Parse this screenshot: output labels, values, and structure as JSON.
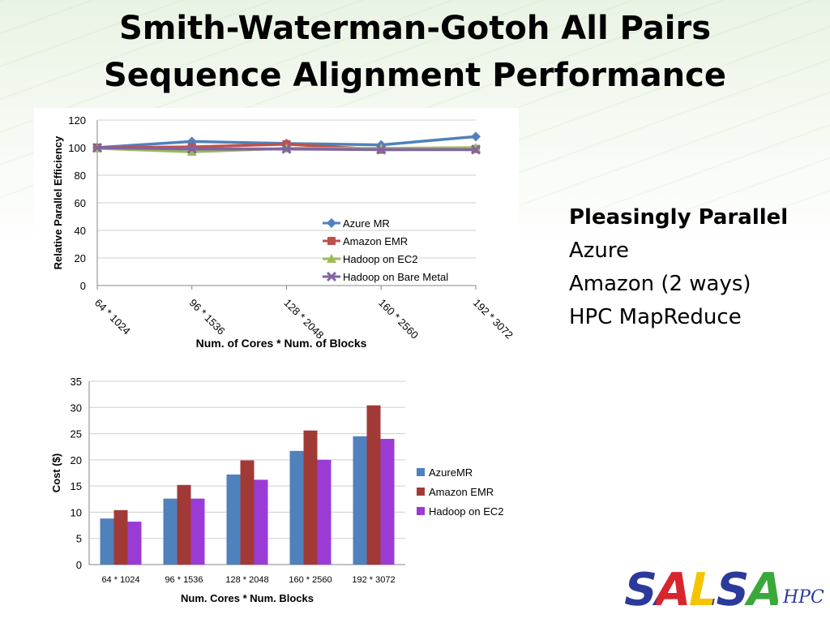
{
  "slide": {
    "title_line1": "Smith-Waterman-Gotoh All Pairs",
    "title_line2": "Sequence Alignment Performance",
    "bullets": {
      "heading": "Pleasingly Parallel",
      "items": [
        "Azure",
        "Amazon (2 ways)",
        "HPC MapReduce"
      ]
    },
    "logo": {
      "mark": "SALSA",
      "sub": "HPC"
    }
  },
  "chart_data": [
    {
      "type": "line",
      "xlabel": "Num. of Cores * Num. of Blocks",
      "ylabel": "Relative Parallel Efficiency",
      "categories": [
        "64 * 1024",
        "96 * 1536",
        "128 * 2048",
        "160 * 2560",
        "192 * 3072"
      ],
      "ylim": [
        0,
        120
      ],
      "yticks": [
        0,
        20,
        40,
        60,
        80,
        100,
        120
      ],
      "grid": true,
      "legend_position": "bottom-right",
      "series": [
        {
          "name": "Azure MR",
          "color": "#4f81bd",
          "marker": "diamond",
          "values": [
            100,
            104.5,
            103,
            102,
            108
          ]
        },
        {
          "name": "Amazon EMR",
          "color": "#c0504d",
          "marker": "square",
          "values": [
            100,
            100.5,
            102.5,
            98.5,
            99
          ]
        },
        {
          "name": "Hadoop on EC2",
          "color": "#9bbb59",
          "marker": "triangle",
          "values": [
            99.5,
            97,
            99.5,
            99.5,
            100
          ]
        },
        {
          "name": "Hadoop on Bare Metal",
          "color": "#8064a2",
          "marker": "x",
          "values": [
            100,
            99,
            99,
            98.5,
            98.5
          ]
        }
      ]
    },
    {
      "type": "bar",
      "xlabel": "Num. Cores * Num. Blocks",
      "ylabel": "Cost ($)",
      "categories": [
        "64 * 1024",
        "96 * 1536",
        "128 * 2048",
        "160 * 2560",
        "192 * 3072"
      ],
      "ylim": [
        0,
        35
      ],
      "yticks": [
        0,
        5,
        10,
        15,
        20,
        25,
        30,
        35
      ],
      "grid": true,
      "legend_position": "right",
      "series": [
        {
          "name": "AzureMR",
          "color": "#4f81bd",
          "values": [
            8.8,
            12.6,
            17.2,
            21.7,
            24.5
          ]
        },
        {
          "name": "Amazon EMR",
          "color": "#a13a37",
          "values": [
            10.4,
            15.2,
            19.9,
            25.6,
            30.4
          ]
        },
        {
          "name": "Hadoop on EC2",
          "color": "#9b3bd6",
          "values": [
            8.2,
            12.6,
            16.2,
            20.0,
            24.0
          ]
        }
      ]
    }
  ]
}
